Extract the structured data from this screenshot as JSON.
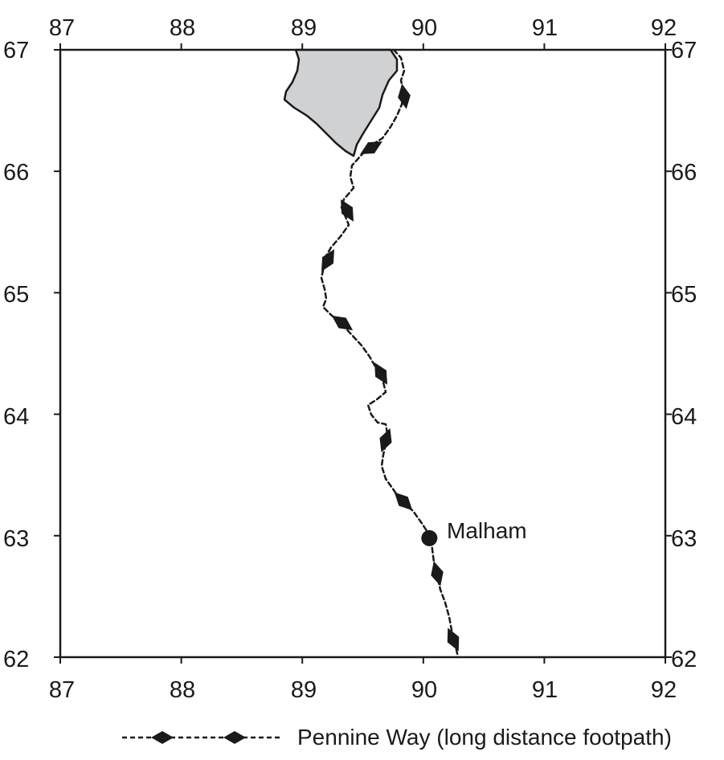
{
  "map": {
    "x_axis": {
      "min": 87,
      "max": 92,
      "ticks": [
        "87",
        "88",
        "89",
        "90",
        "91",
        "92"
      ]
    },
    "y_axis": {
      "min": 62,
      "max": 67,
      "ticks": [
        "62",
        "63",
        "64",
        "65",
        "66",
        "67"
      ]
    },
    "lake": {
      "fill": "#d0d1d3",
      "stroke": "#1a1a1a"
    },
    "footpath": {
      "color": "#1a1a1a",
      "style": "dashed",
      "marker": "diamond"
    },
    "place": {
      "name": "Malham",
      "x": 90.05,
      "y": 62.98
    }
  },
  "legend": {
    "items": [
      {
        "label": "Pennine Way (long distance footpath)",
        "symbol": "dashed-line-diamond"
      }
    ]
  }
}
